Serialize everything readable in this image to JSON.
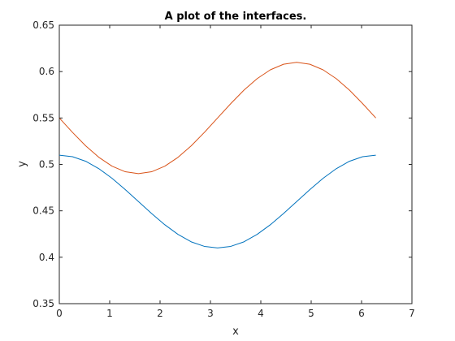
{
  "chart_data": {
    "type": "line",
    "title": "A plot of the interfaces.",
    "xlabel": "x",
    "ylabel": "y",
    "xlim": [
      0,
      7
    ],
    "ylim": [
      0.35,
      0.65
    ],
    "x_ticks": [
      0,
      1,
      2,
      3,
      4,
      5,
      6,
      7
    ],
    "x_tick_labels": [
      "0",
      "1",
      "2",
      "3",
      "4",
      "5",
      "6",
      "7"
    ],
    "y_ticks": [
      0.35,
      0.4,
      0.45,
      0.5,
      0.55,
      0.6,
      0.65
    ],
    "y_tick_labels": [
      "0.35",
      "0.4",
      "0.45",
      "0.5",
      "0.55",
      "0.6",
      "0.65"
    ],
    "grid": false,
    "legend": "none",
    "series": [
      {
        "color": "#0072BD",
        "x": [
          0,
          0.2618,
          0.5236,
          0.7854,
          1.0472,
          1.309,
          1.5708,
          1.8326,
          2.0944,
          2.3562,
          2.618,
          2.8798,
          3.1416,
          3.4034,
          3.6652,
          3.927,
          4.1888,
          4.4506,
          4.7124,
          4.9742,
          5.236,
          5.4978,
          5.7596,
          6.0214,
          6.2832
        ],
        "y": [
          0.51,
          0.5083,
          0.5034,
          0.4954,
          0.485,
          0.4729,
          0.46,
          0.4471,
          0.435,
          0.4246,
          0.4166,
          0.4117,
          0.41,
          0.4117,
          0.4166,
          0.4246,
          0.435,
          0.4471,
          0.46,
          0.4729,
          0.485,
          0.4954,
          0.5034,
          0.5083,
          0.51
        ]
      },
      {
        "color": "#D95319",
        "x": [
          0,
          0.2618,
          0.5236,
          0.7854,
          1.0472,
          1.309,
          1.5708,
          1.8326,
          2.0944,
          2.3562,
          2.618,
          2.8798,
          3.1416,
          3.4034,
          3.6652,
          3.927,
          4.1888,
          4.4506,
          4.7124,
          4.9742,
          5.236,
          5.4978,
          5.7596,
          6.0214,
          6.2832
        ],
        "y": [
          0.55,
          0.5345,
          0.52,
          0.5076,
          0.4981,
          0.4921,
          0.49,
          0.4921,
          0.4981,
          0.5076,
          0.52,
          0.5345,
          0.55,
          0.5655,
          0.58,
          0.5924,
          0.6019,
          0.6079,
          0.61,
          0.6079,
          0.6019,
          0.5924,
          0.58,
          0.5655,
          0.55
        ]
      }
    ]
  }
}
